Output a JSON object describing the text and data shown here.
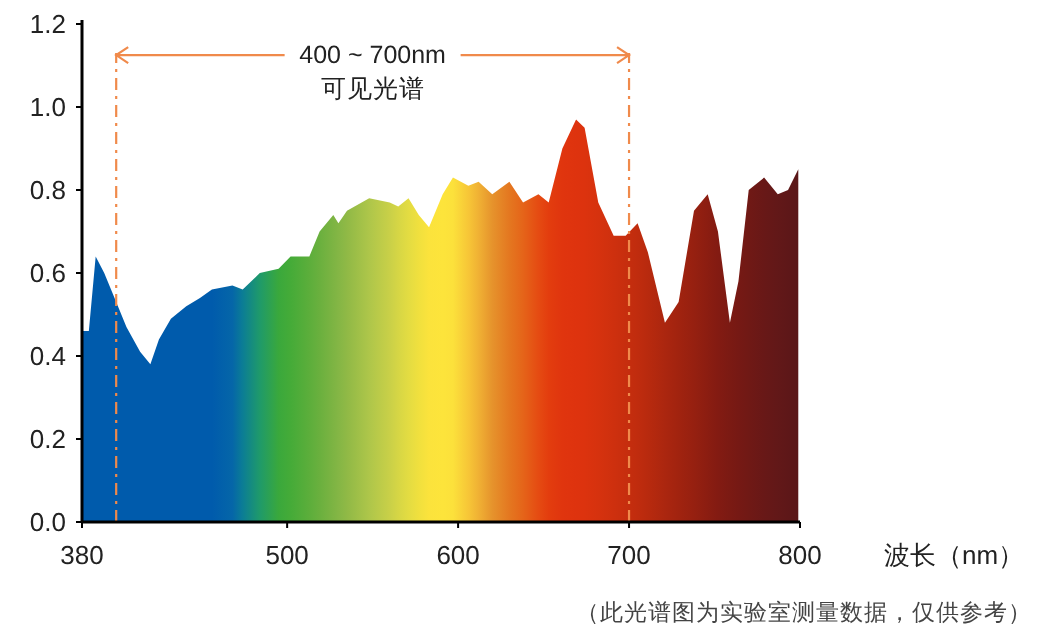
{
  "chart_data": {
    "type": "area",
    "xlabel": "波长（nm）",
    "x": [
      380,
      384,
      388,
      393,
      400,
      406,
      414,
      420,
      425,
      432,
      441,
      449,
      456,
      468,
      474,
      484,
      495,
      502,
      513,
      519,
      527,
      530,
      535,
      548,
      560,
      565,
      571,
      577,
      583,
      591,
      597,
      606,
      612,
      620,
      630,
      638,
      647,
      653,
      661,
      669,
      674,
      682,
      691,
      698,
      705,
      711,
      721,
      729,
      738,
      746,
      752,
      759,
      764,
      770,
      779,
      787,
      793,
      799
    ],
    "values": [
      0.46,
      0.46,
      0.64,
      0.6,
      0.53,
      0.47,
      0.41,
      0.38,
      0.44,
      0.49,
      0.52,
      0.54,
      0.56,
      0.57,
      0.56,
      0.6,
      0.61,
      0.64,
      0.64,
      0.7,
      0.74,
      0.72,
      0.75,
      0.78,
      0.77,
      0.76,
      0.78,
      0.74,
      0.71,
      0.79,
      0.83,
      0.81,
      0.82,
      0.79,
      0.82,
      0.77,
      0.79,
      0.77,
      0.9,
      0.97,
      0.95,
      0.77,
      0.69,
      0.69,
      0.72,
      0.65,
      0.48,
      0.53,
      0.75,
      0.79,
      0.7,
      0.48,
      0.58,
      0.8,
      0.83,
      0.79,
      0.8,
      0.85
    ],
    "colors": [
      "#005bac",
      "#005bac",
      "#005bac",
      "#005bac",
      "#005bac",
      "#005bac",
      "#005bac",
      "#005bac",
      "#005bac",
      "#005bac",
      "#005bac",
      "#005bac",
      "#005bac",
      "#0566a8",
      "#0b7d95",
      "#1f9a6a",
      "#3aa83c",
      "#45ab38",
      "#5cae3b",
      "#6ab03e",
      "#7db443",
      "#84b645",
      "#90b946",
      "#aec64a",
      "#c9d048",
      "#d6d645",
      "#e3dc42",
      "#f0e03e",
      "#fbe33c",
      "#fde43b",
      "#fce13b",
      "#f7c637",
      "#f0b134",
      "#e6932c",
      "#e47720",
      "#e56419",
      "#e54b12",
      "#e33d0e",
      "#e0350e",
      "#de330e",
      "#dc330e",
      "#d6320e",
      "#ce300e",
      "#c72e0e",
      "#c02c0e",
      "#b82a0e",
      "#ab260f",
      "#a1230f",
      "#962010",
      "#8b1d11",
      "#831b12",
      "#7b1a13",
      "#761914",
      "#701915",
      "#681817",
      "#621818",
      "#5e1718",
      "#5a1718"
    ],
    "xlim": [
      380,
      800
    ],
    "xticks": [
      380,
      500,
      600,
      700,
      800
    ],
    "ylim": [
      0,
      1.2
    ],
    "yticks": [
      {
        "value": 0,
        "label": "0.0"
      },
      {
        "value": 0.2,
        "label": "0.2"
      },
      {
        "value": 0.4,
        "label": "0.4"
      },
      {
        "value": 0.6,
        "label": "0.6"
      },
      {
        "value": 0.8,
        "label": "0.8"
      },
      {
        "value": 1.0,
        "label": "1.0"
      },
      {
        "value": 1.2,
        "label": "1.2"
      }
    ],
    "ref_lines": [
      {
        "axis": "x",
        "value": 400,
        "color": "#f08a4b",
        "line_style": "dashed"
      },
      {
        "axis": "x",
        "value": 700,
        "color": "#f08a4b",
        "line_style": "dashed"
      }
    ],
    "annotations": [
      {
        "text": "400 ~ 700nm",
        "x": 400,
        "y": 1.13
      },
      "可见光谱",
      "（此光谱图为实验室测量数据，仅供参考）"
    ]
  }
}
